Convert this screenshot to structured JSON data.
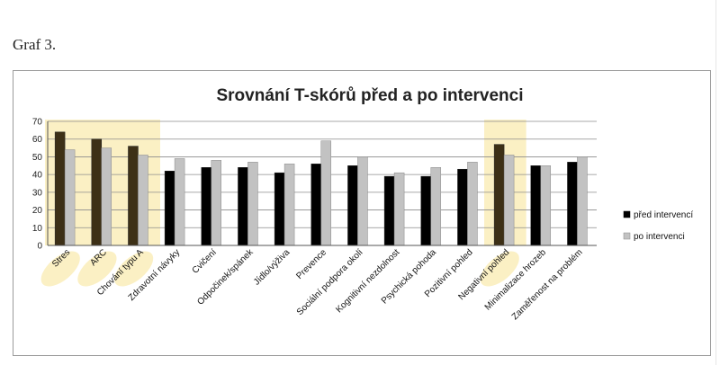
{
  "caption": "Graf 3.",
  "chart_data": {
    "type": "bar",
    "title": "Srovnání T-skórů před a po intervenci",
    "xlabel": "",
    "ylabel": "",
    "ylim": [
      0,
      70
    ],
    "yticks": [
      0,
      10,
      20,
      30,
      40,
      50,
      60,
      70
    ],
    "grid": true,
    "legend_position": "right",
    "categories": [
      "Stres",
      "ARC",
      "Chování typu A",
      "Zdravotní návyky",
      "Cvičení",
      "Odpočinek/spánek",
      "Jídlo/výživa",
      "Prevence",
      "Sociální podpora okolí",
      "Kognitivní nezdolnost",
      "Psychická pohoda",
      "Pozitivní pohled",
      "Negativní pohled",
      "Minimalizace hrozeb",
      "Zaměřenost na problém"
    ],
    "highlighted": [
      0,
      1,
      2,
      12
    ],
    "series": [
      {
        "name": "před intervencí",
        "color": "#000000",
        "highlight_color": "#3d3016",
        "values": [
          64,
          60,
          56,
          42,
          44,
          44,
          41,
          46,
          45,
          39,
          39,
          43,
          57,
          45,
          47
        ]
      },
      {
        "name": "po intervenci",
        "color": "#c2c2c2",
        "values": [
          54,
          55,
          51,
          49,
          48,
          47,
          46,
          59,
          50,
          41,
          44,
          47,
          51,
          45,
          50
        ]
      }
    ]
  }
}
